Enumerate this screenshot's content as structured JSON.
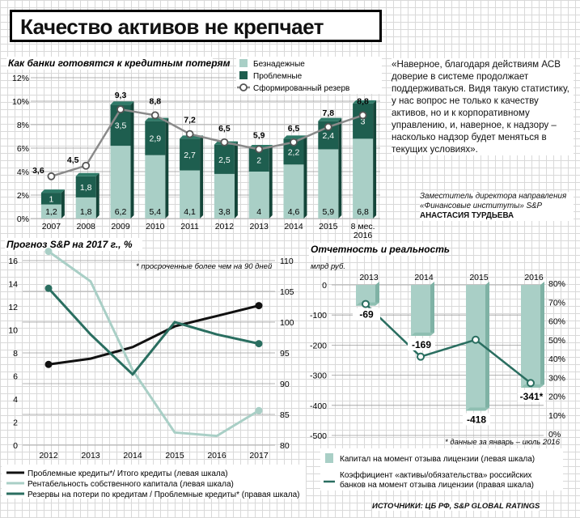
{
  "title": "Качество активов не крепчает",
  "quote": "«Наверное, благодаря действиям АСВ доверие в системе продолжает поддерживаться. Видя такую статистику, у нас вопрос не только к качеству активов, но и к корпоративному управлению, и, наверное, к надзору – насколько надзор будет меняться в текущих условиях».",
  "author_position": "Заместитель директора направления «Финансовые институты» S&P",
  "author_name": "АНАСТАСИЯ ТУРДЬЕВА",
  "source": "ИСТОЧНИКИ: ЦБ РФ, S&P GLOBAL RATINGS",
  "colors": {
    "light": "#a9cfc6",
    "dark": "#1e5e4f",
    "line": "#8a8a8a",
    "black": "#111111",
    "teal": "#2a6e60"
  },
  "chart_data": [
    {
      "type": "bar",
      "stacked": true,
      "title": "Как банки готовятся к кредитным потерям",
      "categories": [
        "2007",
        "2008",
        "2009",
        "2010",
        "2011",
        "2012",
        "2013",
        "2014",
        "2015",
        "8 мес. 2016"
      ],
      "yticks": [
        "0%",
        "2%",
        "4%",
        "6%",
        "8%",
        "10%",
        "12%"
      ],
      "ylim": [
        0,
        12
      ],
      "series": [
        {
          "name": "Безнадежные",
          "values": [
            1.2,
            1.8,
            6.2,
            5.4,
            4.1,
            3.8,
            4,
            4.6,
            5.9,
            6.8
          ]
        },
        {
          "name": "Проблемные",
          "values": [
            1,
            1.8,
            3.5,
            2.9,
            2.7,
            2.5,
            2,
            2.2,
            2.4,
            3
          ]
        },
        {
          "name": "Сформированный резерв",
          "type": "line",
          "values": [
            3.6,
            4.5,
            9.3,
            8.8,
            7.2,
            6.5,
            5.9,
            6.5,
            7.8,
            8.8
          ]
        }
      ],
      "labels_bottom": [
        "1,2",
        "1,8",
        "6,2",
        "5,4",
        "4,1",
        "3,8",
        "4",
        "4,6",
        "5,9",
        "6,8"
      ],
      "labels_top": [
        "1",
        "1,8",
        "3,5",
        "2,9",
        "2,7",
        "2,5",
        "2",
        "2,2",
        "2,4",
        "3"
      ],
      "labels_line": [
        "3,6",
        "4,5",
        "9,3",
        "8,8",
        "7,2",
        "6,5",
        "5,9",
        "6,5",
        "7,8",
        "8,8"
      ],
      "cat_line1": [
        "2007",
        "2008",
        "2009",
        "2010",
        "2011",
        "2012",
        "2013",
        "2014",
        "2015",
        "8 мес."
      ],
      "cat_line2": [
        "",
        "",
        "",
        "",
        "",
        "",
        "",
        "",
        "",
        "2016"
      ]
    },
    {
      "type": "line",
      "title": "Прогноз S&P на 2017 г., %",
      "note": "* просроченные более чем на 90 дней",
      "x": [
        "2012",
        "2013",
        "2014",
        "2015",
        "2016",
        "2017"
      ],
      "yticks_left": [
        "0",
        "2",
        "4",
        "6",
        "8",
        "10",
        "12",
        "14",
        "16"
      ],
      "ylim_left": [
        0,
        16
      ],
      "yticks_right": [
        "80",
        "85",
        "90",
        "95",
        "100",
        "105",
        "110"
      ],
      "ylim_right": [
        80,
        110
      ],
      "series": [
        {
          "name": "Проблемные кредиты*/ Итого кредиты (левая шкала)",
          "axis": "left",
          "values": [
            7,
            7.5,
            8.5,
            10.3,
            11.2,
            12.1
          ],
          "marker_ends": true
        },
        {
          "name": "Рентабельность собственного капитала (левая шкала)",
          "axis": "left",
          "values": [
            16.8,
            14.2,
            6.5,
            1.1,
            0.8,
            3
          ],
          "marker_ends": true
        },
        {
          "name": "Резервы на потери по кредитам / Проблемные кредиты* (правая шкала)",
          "axis": "right",
          "values": [
            105.5,
            98,
            91.5,
            100,
            98,
            96.5
          ],
          "marker_ends": true
        }
      ]
    },
    {
      "type": "bar",
      "title": "Отчетность и реальность",
      "ylabel": "млрд руб.",
      "note": "* данные за январь – июль 2016",
      "categories": [
        "2013",
        "2014",
        "2015",
        "2016"
      ],
      "yticks_left": [
        "0",
        "-100",
        "-200",
        "-300",
        "-400",
        "-500"
      ],
      "ylim_left": [
        -520,
        0
      ],
      "yticks_right": [
        "0%",
        "10%",
        "20%",
        "30%",
        "40%",
        "50%",
        "60%",
        "70%",
        "80%"
      ],
      "ylim_right": [
        0,
        80
      ],
      "series": [
        {
          "name": "Капитал на момент отзыва лицензии (левая шкала)",
          "values": [
            -69,
            -169,
            -418,
            -341
          ],
          "labels": [
            "-69",
            "-169",
            "-418",
            "-341*"
          ]
        },
        {
          "name": "Коэффициент «активы/обязательства» российских банков на момент отзыва лицензии (правая шкала)",
          "type": "line",
          "axis": "right",
          "values": [
            69,
            41,
            50,
            27
          ]
        }
      ],
      "extra_zero_tick": "100"
    }
  ]
}
